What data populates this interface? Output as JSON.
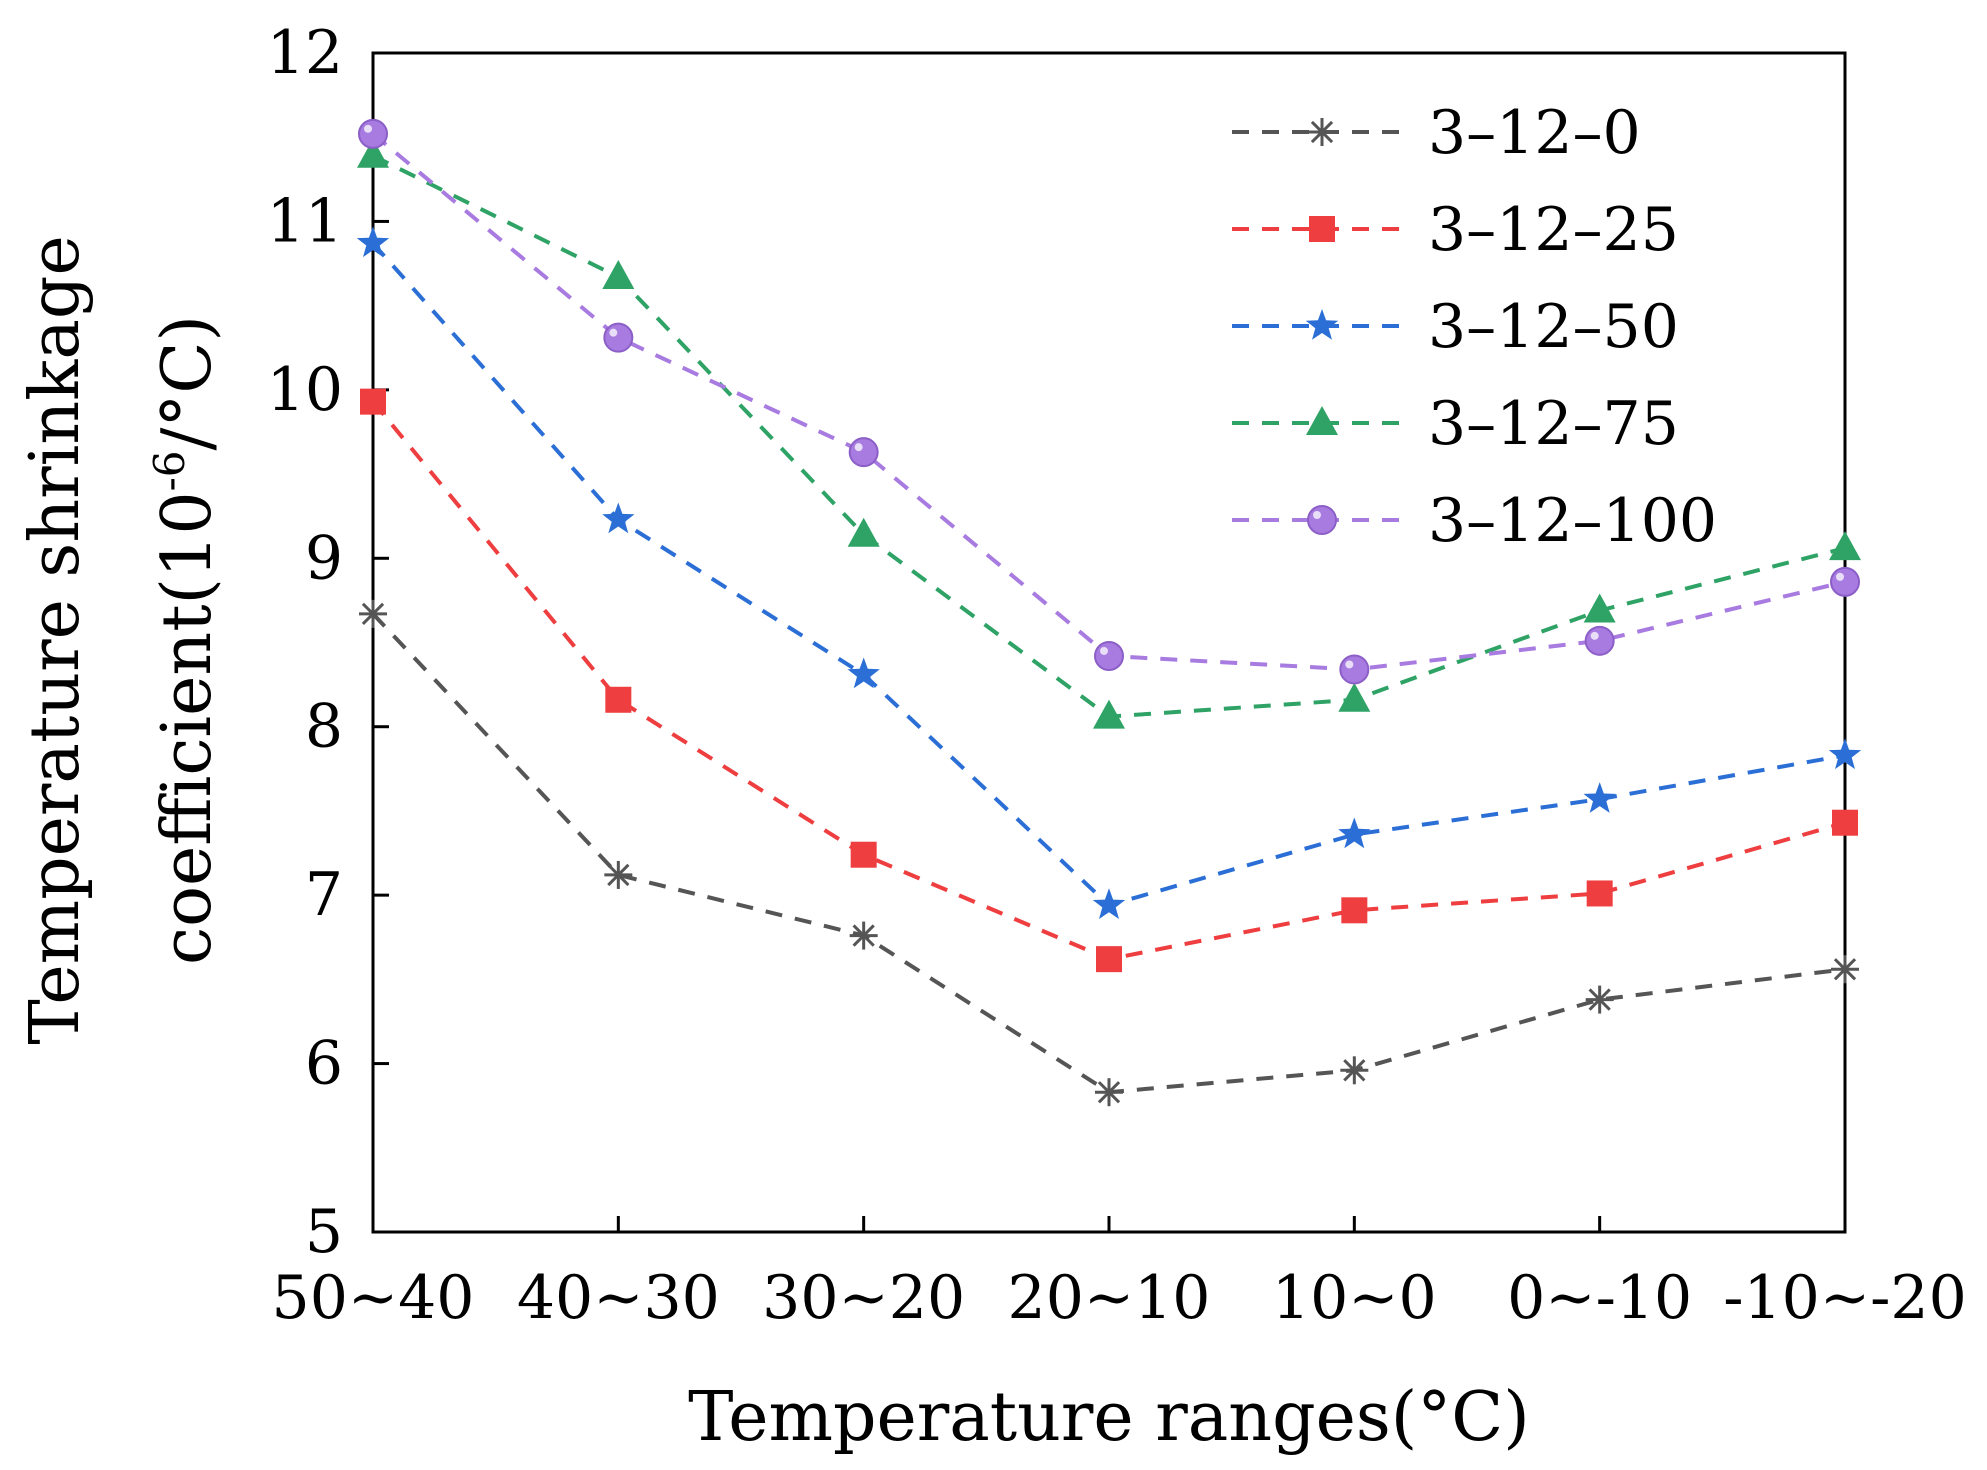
{
  "chart_data": {
    "type": "line",
    "xlabel": "Temperature ranges(°C)",
    "ylabel_line1": "Temperature shrinkage",
    "ylabel_line2_prefix": "coefficient(10",
    "ylabel_line2_exponent": "-6",
    "ylabel_line2_suffix": "/°C)",
    "categories": [
      "50~40",
      "40~30",
      "30~20",
      "20~10",
      "10~0",
      "0~-10",
      "-10~-20"
    ],
    "ylim": [
      5,
      12
    ],
    "yticks": [
      "5",
      "6",
      "7",
      "8",
      "9",
      "10",
      "11",
      "12"
    ],
    "legend_position": "top-right",
    "grid": false,
    "series": [
      {
        "name": "3–12–0",
        "color": "#555555",
        "marker": "asterisk",
        "values": [
          8.67,
          7.12,
          6.76,
          5.83,
          5.96,
          6.38,
          6.56
        ]
      },
      {
        "name": "3–12–25",
        "color": "#ee3e3f",
        "marker": "square",
        "values": [
          9.93,
          8.16,
          7.24,
          6.62,
          6.91,
          7.01,
          7.43
        ]
      },
      {
        "name": "3–12–50",
        "color": "#2b6fd6",
        "marker": "star",
        "values": [
          10.87,
          9.23,
          8.31,
          6.94,
          7.36,
          7.57,
          7.83
        ]
      },
      {
        "name": "3–12–75",
        "color": "#2fa366",
        "marker": "triangle",
        "values": [
          11.39,
          10.67,
          9.14,
          8.06,
          8.16,
          8.69,
          9.06
        ]
      },
      {
        "name": "3–12–100",
        "color": "#a87be0",
        "marker": "circle",
        "values": [
          11.52,
          10.31,
          9.63,
          8.42,
          8.34,
          8.51,
          8.86
        ]
      }
    ]
  }
}
